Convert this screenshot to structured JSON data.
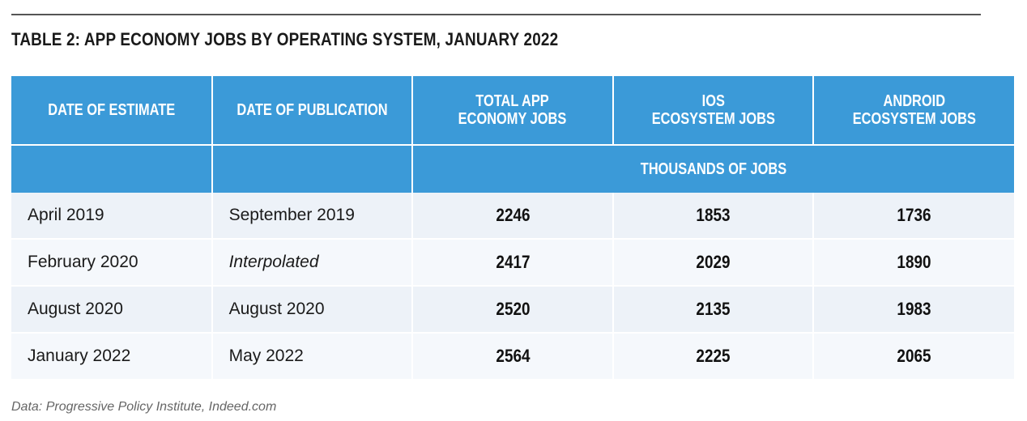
{
  "title": "TABLE 2: APP ECONOMY JOBS BY OPERATING SYSTEM, JANUARY 2022",
  "columns": [
    "DATE OF ESTIMATE",
    "DATE OF PUBLICATION",
    "TOTAL APP ECONOMY JOBS",
    "IOS ECOSYSTEM JOBS",
    "ANDROID ECOSYSTEM JOBS"
  ],
  "units_label": "THOUSANDS OF JOBS",
  "rows": [
    {
      "estimate": "April 2019",
      "publication": "September 2019",
      "total": "2246",
      "ios": "1853",
      "android": "1736"
    },
    {
      "estimate": "February 2020",
      "publication": "Interpolated",
      "total": "2417",
      "ios": "2029",
      "android": "1890"
    },
    {
      "estimate": "August 2020",
      "publication": "August 2020",
      "total": "2520",
      "ios": "2135",
      "android": "1983"
    },
    {
      "estimate": "January 2022",
      "publication": "May 2022",
      "total": "2564",
      "ios": "2225",
      "android": "2065"
    }
  ],
  "source": "Data: Progressive Policy Institute, Indeed.com",
  "colors": {
    "header": "#3b9ad8",
    "row_odd": "#edf2f8",
    "row_even": "#f5f8fc"
  }
}
